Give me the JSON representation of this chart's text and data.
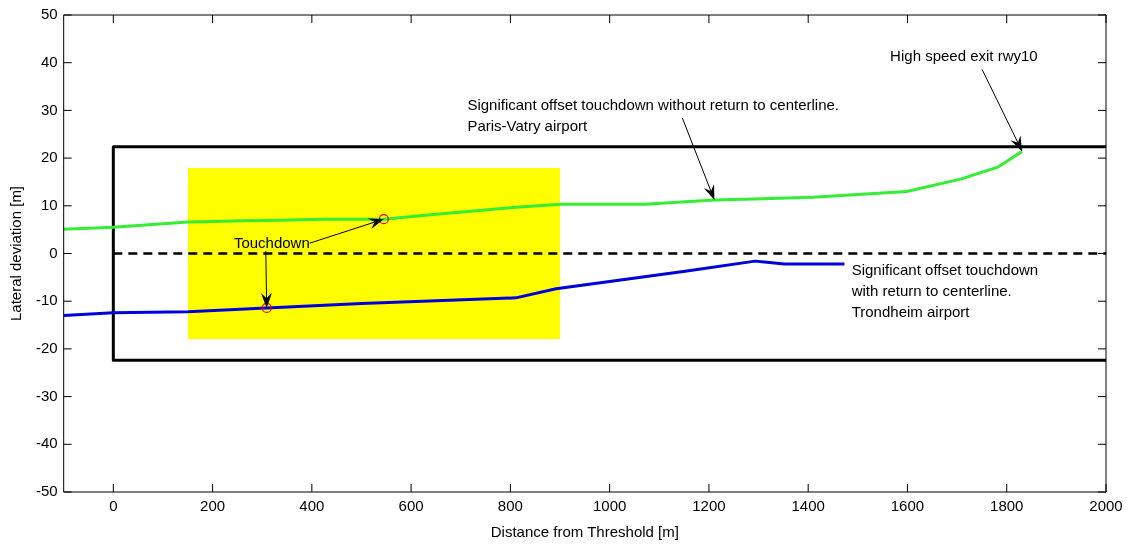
{
  "chart_data": {
    "type": "line",
    "xlabel": "Distance from Threshold [m]",
    "ylabel": "Lateral deviation [m]",
    "xlim": [
      -100,
      2000
    ],
    "xticks": [
      0,
      200,
      400,
      600,
      800,
      1000,
      1200,
      1400,
      1600,
      1800,
      2000
    ],
    "ylim": [
      -50,
      50
    ],
    "yticks": [
      -50,
      -40,
      -30,
      -20,
      -10,
      0,
      10,
      20,
      30,
      40,
      50
    ],
    "grid": false,
    "legend": false,
    "series": [
      {
        "type": "area",
        "color": "#ffff00",
        "x": [
          150,
          900
        ],
        "values": [
          17.8,
          17.8
        ]
      },
      {
        "type": "area",
        "color": "#ffff00",
        "x": [
          150,
          900
        ],
        "values": [
          -17.8,
          -17.8
        ]
      },
      {
        "color": "#000000",
        "x": [
          2000,
          0,
          0,
          2000
        ],
        "values": [
          22.4,
          22.4,
          -22.4,
          -22.4
        ]
      },
      {
        "color": "#000000",
        "line_style": "dashed",
        "x": [
          0,
          2000
        ],
        "values": [
          0,
          0
        ]
      },
      {
        "color": "#33ee33",
        "x": [
          -100,
          0,
          150,
          425,
          545,
          628,
          811,
          902,
          1071,
          1211,
          1410,
          1598,
          1707,
          1782,
          1831
        ],
        "values": [
          5.1,
          5.5,
          6.6,
          7.2,
          7.2,
          8.0,
          9.7,
          10.3,
          10.3,
          11.2,
          11.8,
          13.0,
          15.6,
          18.1,
          21.4
        ]
      },
      {
        "color": "#0000dd",
        "x": [
          -100,
          0,
          150,
          309,
          500,
          811,
          892,
          933,
          1152,
          1293,
          1352,
          1473
        ],
        "values": [
          -13.0,
          -12.4,
          -12.2,
          -11.4,
          -10.5,
          -9.3,
          -7.4,
          -6.8,
          -3.7,
          -1.6,
          -2.2,
          -2.2
        ]
      },
      {
        "type": "scatter",
        "color": "#dd0000",
        "marker": "circle",
        "x": [
          309,
          545
        ],
        "values": [
          -11.4,
          7.2
        ]
      }
    ],
    "annotations": [
      {
        "text": "High speed exit rwy10",
        "x": 1831,
        "y": 21.4
      },
      {
        "text": "Significant offset touchdown without return to centerline.\nParis-Vatry airport",
        "x": 1211,
        "y": 11.2
      },
      {
        "text": "Touchdown",
        "x": 545,
        "y": 7.2
      },
      "Significant offset touchdown\nwith return to centerline.\nTrondheim airport"
    ]
  }
}
